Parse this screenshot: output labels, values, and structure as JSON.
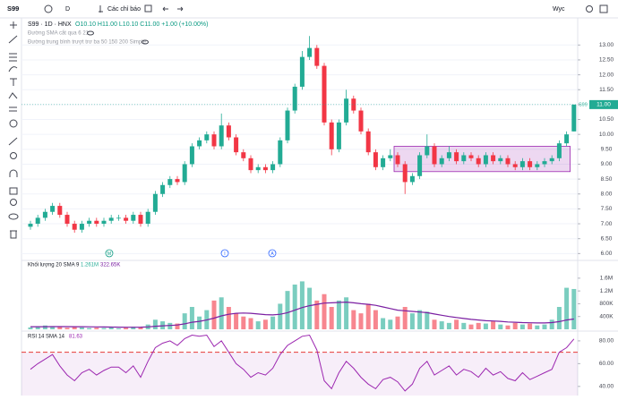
{
  "toolbar": {
    "symbol": "S99",
    "interval": "D",
    "indicators": "Các chỉ báo",
    "user": "Wyc"
  },
  "chart_data": [
    {
      "type": "candlestick",
      "title": "S99 · 1D · HNX",
      "ohlc_text": "O10.10 H11.00 L10.10 C11.00 +1.00 (+10.00%)",
      "indicators": [
        "Đường SMA cắt qua 6 21",
        "Đường trung bình trượt trơ ba 50 150 200 Simple"
      ],
      "open": [
        6.9,
        7.0,
        7.2,
        7.4,
        7.6,
        7.3,
        7.0,
        6.8,
        7.0,
        7.1,
        7.0,
        7.1,
        7.2,
        7.2,
        7.1,
        7.3,
        7.0,
        7.4,
        8.0,
        8.3,
        8.5,
        8.4,
        9.0,
        9.6,
        9.8,
        10.0,
        9.6,
        10.3,
        9.9,
        9.4,
        9.2,
        8.8,
        8.9,
        8.8,
        9.0,
        9.8,
        10.8,
        11.6,
        12.6,
        12.9,
        12.3,
        10.4,
        9.5,
        10.4,
        11.2,
        10.8,
        10.1,
        9.4,
        8.9,
        9.2,
        9.3,
        9.0,
        8.4,
        8.6,
        9.3,
        9.6,
        9.0,
        9.2,
        9.4,
        9.1,
        9.3,
        9.2,
        9.0,
        9.3,
        9.1,
        9.2,
        9.0,
        8.9,
        9.1,
        8.9,
        9.0,
        9.1,
        9.2,
        9.7,
        10.1
      ],
      "high": [
        7.1,
        7.3,
        7.5,
        7.7,
        7.7,
        7.4,
        7.1,
        7.1,
        7.2,
        7.2,
        7.2,
        7.3,
        7.3,
        7.3,
        7.4,
        7.4,
        7.5,
        8.1,
        8.4,
        8.6,
        8.6,
        9.1,
        9.7,
        9.9,
        10.1,
        10.1,
        10.7,
        10.4,
        10.0,
        9.5,
        9.3,
        9.0,
        9.0,
        9.1,
        9.9,
        10.9,
        11.7,
        12.8,
        13.3,
        13.0,
        12.4,
        10.5,
        10.5,
        11.5,
        11.3,
        10.9,
        10.2,
        9.5,
        9.3,
        9.5,
        9.4,
        9.1,
        8.7,
        9.4,
        10.0,
        9.7,
        9.3,
        9.6,
        9.5,
        9.4,
        9.4,
        9.3,
        9.4,
        9.4,
        9.3,
        9.3,
        9.1,
        9.2,
        9.2,
        9.1,
        9.2,
        9.3,
        9.8,
        10.1,
        11.0
      ],
      "low": [
        6.8,
        6.9,
        7.1,
        7.3,
        7.2,
        6.9,
        6.7,
        6.7,
        6.9,
        6.9,
        6.9,
        7.0,
        7.1,
        7.0,
        7.0,
        6.9,
        6.9,
        7.3,
        7.9,
        8.2,
        8.3,
        8.3,
        8.9,
        9.5,
        9.7,
        9.5,
        9.5,
        9.8,
        9.3,
        9.1,
        8.7,
        8.7,
        8.7,
        8.7,
        8.9,
        9.7,
        10.7,
        11.5,
        12.5,
        12.2,
        10.3,
        9.3,
        9.4,
        10.3,
        10.7,
        10.0,
        9.3,
        8.8,
        8.8,
        9.1,
        8.9,
        8.0,
        8.3,
        8.5,
        9.2,
        8.9,
        8.9,
        9.1,
        9.0,
        9.0,
        9.1,
        8.9,
        8.9,
        9.0,
        9.0,
        8.9,
        8.8,
        8.8,
        8.8,
        8.8,
        8.9,
        9.0,
        9.1,
        9.6,
        10.1
      ],
      "close": [
        7.0,
        7.2,
        7.4,
        7.6,
        7.3,
        7.0,
        6.8,
        7.0,
        7.1,
        7.0,
        7.1,
        7.2,
        7.2,
        7.1,
        7.3,
        7.0,
        7.4,
        8.0,
        8.3,
        8.5,
        8.4,
        9.0,
        9.6,
        9.8,
        10.0,
        9.6,
        10.3,
        9.9,
        9.4,
        9.2,
        8.8,
        8.9,
        8.8,
        9.0,
        9.8,
        10.8,
        11.6,
        12.6,
        12.9,
        12.3,
        10.4,
        9.5,
        10.4,
        11.2,
        10.8,
        10.1,
        9.4,
        8.9,
        9.2,
        9.3,
        9.0,
        8.4,
        8.6,
        9.3,
        9.6,
        9.0,
        9.2,
        9.4,
        9.1,
        9.3,
        9.2,
        9.0,
        9.3,
        9.1,
        9.2,
        9.0,
        8.9,
        9.1,
        8.9,
        9.0,
        9.1,
        9.2,
        9.7,
        10.0,
        11.0
      ],
      "up_color": "#22ab94",
      "down_color": "#f23645",
      "ylim": [
        5.8,
        13.85
      ],
      "yticks": [
        {
          "value": 6,
          "label": "6.00"
        },
        {
          "value": 6.5,
          "label": "6.50"
        },
        {
          "value": 7,
          "label": "7.00"
        },
        {
          "value": 7.5,
          "label": "7.50"
        },
        {
          "value": 8,
          "label": "8.00"
        },
        {
          "value": 8.5,
          "label": "8.50"
        },
        {
          "value": 9,
          "label": "9.00"
        },
        {
          "value": 9.5,
          "label": "9.50"
        },
        {
          "value": 10,
          "label": "10.00"
        },
        {
          "value": 10.5,
          "label": "10.50"
        },
        {
          "value": 11,
          "label": "11.00"
        },
        {
          "value": 11.5,
          "label": "11.50"
        },
        {
          "value": 12,
          "label": "12.00"
        },
        {
          "value": 12.5,
          "label": "12.50"
        },
        {
          "value": 13,
          "label": "13.00"
        }
      ],
      "grid": true,
      "last_price_label": "11.00",
      "last_price_name": "S99",
      "zone": {
        "low": 8.75,
        "high": 9.6,
        "color": "#9c27b0"
      },
      "events": [
        "M",
        "I",
        "A"
      ]
    },
    {
      "type": "volume",
      "title": "Khối lượng 20 SMA 9",
      "volume_label": "1.261M",
      "sma_label": "322.65K",
      "values": [
        60000,
        80000,
        120000,
        90000,
        70000,
        50000,
        90000,
        60000,
        40000,
        50000,
        40000,
        60000,
        30000,
        50000,
        80000,
        60000,
        150000,
        300000,
        250000,
        200000,
        180000,
        500000,
        700000,
        400000,
        600000,
        900000,
        1000000,
        700000,
        500000,
        400000,
        350000,
        250000,
        300000,
        400000,
        800000,
        1200000,
        1400000,
        1500000,
        1300000,
        900000,
        1100000,
        700000,
        900000,
        1000000,
        600000,
        500000,
        800000,
        600000,
        350000,
        300000,
        400000,
        700000,
        500000,
        600000,
        550000,
        300000,
        250000,
        200000,
        300000,
        200000,
        150000,
        200000,
        180000,
        250000,
        150000,
        120000,
        200000,
        150000,
        180000,
        120000,
        150000,
        300000,
        700000,
        1300000,
        1261000
      ],
      "sma": [
        80000,
        80000,
        82000,
        85000,
        85000,
        83000,
        82000,
        80000,
        78000,
        75000,
        72000,
        70000,
        68000,
        65000,
        65000,
        66000,
        75000,
        95000,
        110000,
        120000,
        135000,
        170000,
        220000,
        250000,
        290000,
        350000,
        420000,
        470000,
        500000,
        510000,
        500000,
        480000,
        460000,
        450000,
        470000,
        520000,
        600000,
        680000,
        740000,
        780000,
        820000,
        830000,
        840000,
        850000,
        830000,
        800000,
        780000,
        750000,
        700000,
        650000,
        600000,
        580000,
        560000,
        540000,
        520000,
        480000,
        440000,
        400000,
        370000,
        340000,
        310000,
        290000,
        270000,
        260000,
        250000,
        230000,
        220000,
        210000,
        205000,
        200000,
        200000,
        210000,
        240000,
        290000,
        322650
      ],
      "sma_color": "#7b1fa2",
      "ylim": [
        0,
        2100000
      ],
      "yticks": [
        {
          "value": 400000,
          "label": "400K"
        },
        {
          "value": 800000,
          "label": "800K"
        },
        {
          "value": 1200000,
          "label": "1.2M"
        },
        {
          "value": 1600000,
          "label": "1.6M"
        }
      ]
    },
    {
      "type": "rsi",
      "title": "RSI 14 SMA 14",
      "value_label": "81.63",
      "values": [
        55,
        60,
        64,
        68,
        58,
        50,
        45,
        52,
        55,
        50,
        54,
        57,
        57,
        52,
        58,
        48,
        62,
        74,
        78,
        80,
        76,
        82,
        85,
        84,
        85,
        75,
        80,
        70,
        60,
        55,
        48,
        52,
        50,
        56,
        68,
        76,
        80,
        84,
        85,
        72,
        45,
        38,
        52,
        62,
        56,
        48,
        42,
        38,
        46,
        48,
        44,
        36,
        42,
        56,
        62,
        50,
        54,
        58,
        50,
        55,
        53,
        48,
        56,
        50,
        53,
        47,
        45,
        52,
        46,
        49,
        52,
        55,
        70,
        74,
        81.63
      ],
      "color": "#9c27b0",
      "level": 70,
      "level_color": "#e53935",
      "ylim": [
        32,
        87
      ],
      "yticks": [
        {
          "value": 40,
          "label": "40.00"
        },
        {
          "value": 60,
          "label": "60.00"
        },
        {
          "value": 80,
          "label": "80.00"
        }
      ]
    }
  ]
}
